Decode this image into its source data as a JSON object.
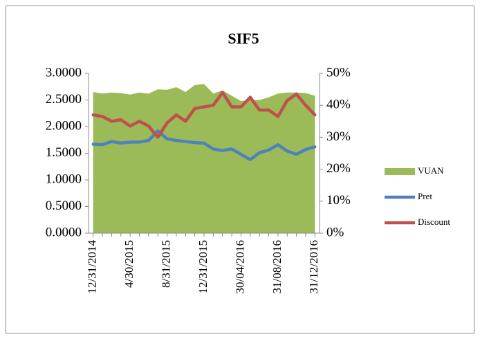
{
  "chart_data": {
    "type": "area_line_combo",
    "title": "SIF5",
    "categories": [
      "12/31/2014",
      null,
      null,
      null,
      "4/30/2015",
      null,
      null,
      null,
      "8/31/2015",
      null,
      null,
      null,
      "12/31/2015",
      null,
      null,
      null,
      "30/04/2016",
      null,
      null,
      null,
      "31/08/2016",
      null,
      null,
      null,
      "31/12/2016"
    ],
    "series": [
      {
        "name": "VUAN",
        "kind": "area",
        "color": "#9bbb59",
        "values": [
          2.65,
          2.62,
          2.64,
          2.63,
          2.6,
          2.64,
          2.62,
          2.7,
          2.69,
          2.74,
          2.65,
          2.78,
          2.8,
          2.62,
          2.68,
          2.58,
          2.48,
          2.5,
          2.5,
          2.55,
          2.62,
          2.64,
          2.64,
          2.63,
          2.58
        ]
      },
      {
        "name": "Pret",
        "kind": "line",
        "color": "#4f81bd",
        "values": [
          1.67,
          1.66,
          1.72,
          1.69,
          1.71,
          1.71,
          1.74,
          1.92,
          1.77,
          1.74,
          1.72,
          1.7,
          1.69,
          1.58,
          1.55,
          1.58,
          1.48,
          1.38,
          1.51,
          1.56,
          1.66,
          1.54,
          1.48,
          1.57,
          1.62
        ]
      },
      {
        "name": "Discount",
        "kind": "line",
        "axis": "y2",
        "color": "#c0504d",
        "values": [
          37,
          36.5,
          35,
          35.5,
          33.5,
          35,
          33.5,
          30,
          34.5,
          37,
          35,
          39,
          39.5,
          40,
          44,
          39.5,
          39.5,
          42.5,
          38.5,
          38.5,
          36.5,
          41.5,
          43.5,
          40,
          37
        ]
      }
    ],
    "ylim": [
      0,
      3
    ],
    "yticks": [
      {
        "value": 0,
        "label": "0.0000"
      },
      {
        "value": 0.5,
        "label": "0.5000"
      },
      {
        "value": 1,
        "label": "1.0000"
      },
      {
        "value": 1.5,
        "label": "1.5000"
      },
      {
        "value": 2,
        "label": "2.0000"
      },
      {
        "value": 2.5,
        "label": "2.5000"
      },
      {
        "value": 3,
        "label": "3.0000"
      }
    ],
    "y2lim": [
      0,
      50
    ],
    "y2ticks": [
      {
        "value": 0,
        "label": "0%"
      },
      {
        "value": 10,
        "label": "10%"
      },
      {
        "value": 20,
        "label": "20%"
      },
      {
        "value": 30,
        "label": "30%"
      },
      {
        "value": 40,
        "label": "40%"
      },
      {
        "value": 50,
        "label": "50%"
      }
    ],
    "legend": "right"
  }
}
